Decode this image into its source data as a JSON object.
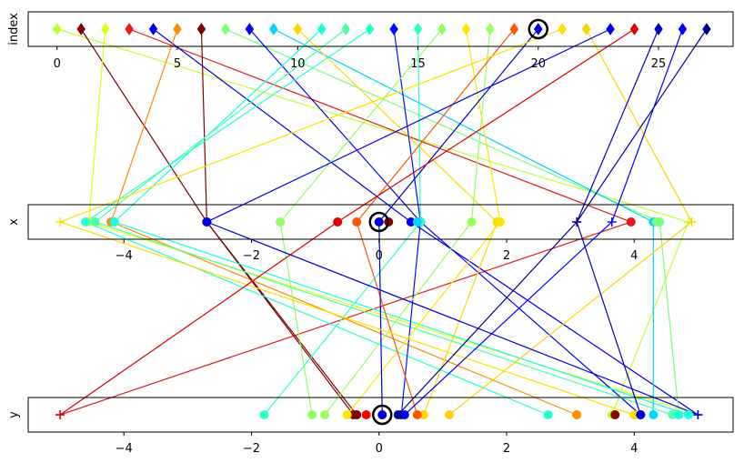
{
  "chart_data": {
    "type": "parallel-coordinates",
    "title": "",
    "axes": [
      {
        "name": "index",
        "label": "index",
        "ticks": [
          0,
          5,
          10,
          15,
          20,
          25
        ],
        "tick_labels": [
          "0",
          "5",
          "10",
          "15",
          "20",
          "25"
        ],
        "xlim": [
          -1.2,
          28.1
        ]
      },
      {
        "name": "x",
        "label": "x",
        "ticks": [
          -4,
          -2,
          0,
          2,
          4
        ],
        "tick_labels": [
          "−4",
          "−2",
          "0",
          "2",
          "4"
        ],
        "xlim": [
          -5.5,
          5.55
        ]
      },
      {
        "name": "y",
        "label": "y",
        "ticks": [
          -4,
          -2,
          0,
          2,
          4
        ],
        "tick_labels": [
          "−4",
          "−2",
          "0",
          "2",
          "4"
        ],
        "xlim": [
          -5.5,
          5.55
        ]
      }
    ],
    "highlight_index": 20,
    "colormap": "jet",
    "records": [
      {
        "index": 0,
        "x": 4.85,
        "y": 3.65,
        "marker": "D",
        "color": "#bfff37"
      },
      {
        "index": 1,
        "x": -2.7,
        "y": -0.35,
        "marker": "D",
        "color": "#800000"
      },
      {
        "index": 2,
        "x": -4.55,
        "y": 5.0,
        "marker": "D",
        "color": "#dfff17"
      },
      {
        "index": 3,
        "x": 3.95,
        "y": -5.0,
        "marker": "D",
        "color": "#e41a1c"
      },
      {
        "index": 4,
        "x": 0.5,
        "y": 5.0,
        "marker": "D",
        "color": "#0000e8"
      },
      {
        "index": 5,
        "x": -4.2,
        "y": 3.1,
        "marker": "D",
        "color": "#ff8c00"
      },
      {
        "index": 6,
        "x": -2.7,
        "y": -0.4,
        "marker": "D",
        "color": "#800000"
      },
      {
        "index": 7,
        "x": 4.4,
        "y": 4.7,
        "marker": "D",
        "color": "#7dff7a"
      },
      {
        "index": 8,
        "x": 0.65,
        "y": 4.1,
        "marker": "D",
        "color": "#0000f1"
      },
      {
        "index": 9,
        "x": 4.3,
        "y": 4.3,
        "marker": "D",
        "color": "#00d4ff"
      },
      {
        "index": 10,
        "x": 1.85,
        "y": 0.7,
        "marker": "D",
        "color": "#ffd700"
      },
      {
        "index": 11,
        "x": -4.15,
        "y": 4.85,
        "marker": "D",
        "color": "#1affe0"
      },
      {
        "index": 12,
        "x": -4.45,
        "y": 4.6,
        "marker": "D",
        "color": "#4dffaa"
      },
      {
        "index": 13,
        "x": -4.6,
        "y": 2.65,
        "marker": "D",
        "color": "#26ffd0"
      },
      {
        "index": 14,
        "x": 0.65,
        "y": 0.35,
        "marker": "D",
        "color": "#0010ff"
      },
      {
        "index": 15,
        "x": 0.65,
        "y": -1.8,
        "marker": "D",
        "color": "#30ffc6"
      },
      {
        "index": 16,
        "x": -1.55,
        "y": -1.05,
        "marker": "D",
        "color": "#90ff66"
      },
      {
        "index": 17,
        "x": 1.9,
        "y": -0.5,
        "marker": "D",
        "color": "#ffe600"
      },
      {
        "index": 18,
        "x": 1.45,
        "y": -0.85,
        "marker": "D",
        "color": "#9aff5c"
      },
      {
        "index": 19,
        "x": -0.35,
        "y": 0.6,
        "marker": "D",
        "color": "#ff5500"
      },
      {
        "index": 20,
        "x": 0.0,
        "y": 0.05,
        "marker": "D",
        "color": "#0000d0"
      },
      {
        "index": 21,
        "x": -5.0,
        "y": 4.0,
        "marker": "D",
        "color": "#ffe000"
      },
      {
        "index": 22,
        "x": 4.9,
        "y": 1.1,
        "marker": "D",
        "color": "#ffd200"
      },
      {
        "index": 23,
        "x": -2.7,
        "y": 5.0,
        "marker": "D",
        "color": "#0000e0"
      },
      {
        "index": 24,
        "x": -0.65,
        "y": -5.0,
        "marker": "D",
        "color": "#dd0000"
      },
      {
        "index": 25,
        "x": 3.1,
        "y": 4.1,
        "marker": "D",
        "color": "#0000c8"
      },
      {
        "index": 26,
        "x": 3.65,
        "y": 0.4,
        "marker": "D",
        "color": "#0000ff"
      },
      {
        "index": 27,
        "x": 3.1,
        "y": 0.3,
        "marker": "D",
        "color": "#000090"
      }
    ],
    "extra_points": {
      "x": [
        {
          "value": 0.15,
          "marker": "o",
          "color": "#8b0000"
        },
        {
          "value": 0.0,
          "marker": "+",
          "color": "#0000d0"
        },
        {
          "value": 4.35,
          "marker": "o",
          "color": "#7dff7a"
        },
        {
          "value": 0.6,
          "marker": "o",
          "color": "#00d4ff"
        }
      ],
      "y": [
        {
          "value": -0.2,
          "marker": "o",
          "color": "#ff0000"
        },
        {
          "value": 3.7,
          "marker": "o",
          "color": "#8b0000"
        },
        {
          "value": 4.1,
          "marker": "+",
          "color": "#0000d0"
        },
        {
          "value": 4.7,
          "marker": "o",
          "color": "#1affe0"
        }
      ]
    }
  }
}
